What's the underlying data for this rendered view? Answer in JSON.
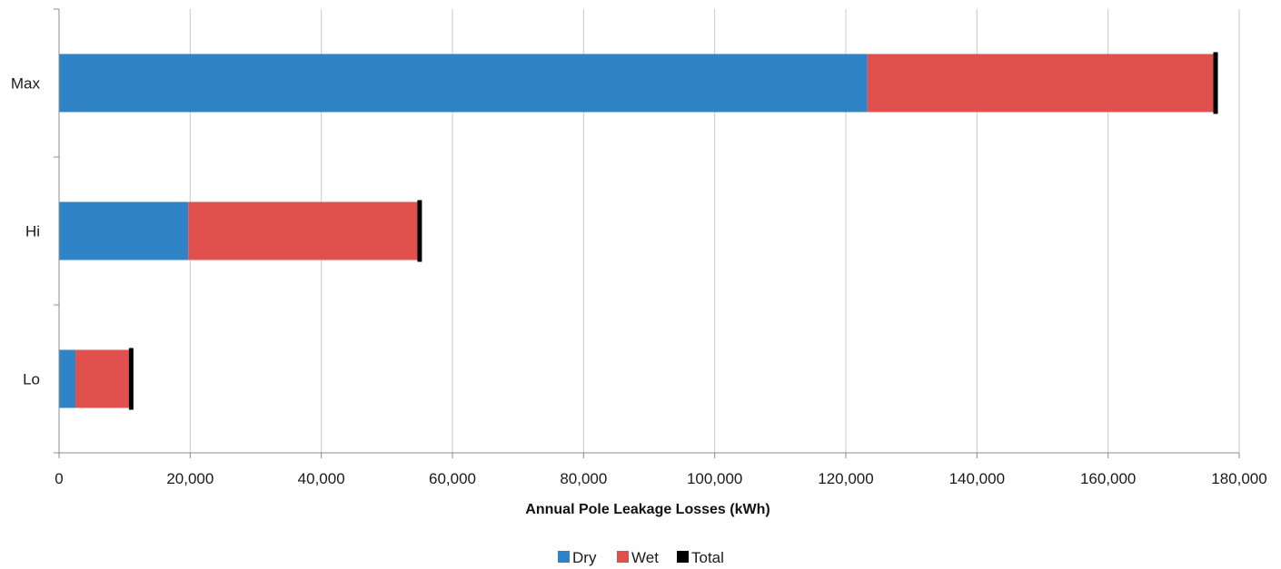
{
  "chart_data": {
    "type": "bar",
    "orientation": "horizontal",
    "stacked": true,
    "categories": [
      "Max",
      "Hi",
      "Lo"
    ],
    "series": [
      {
        "name": "Dry",
        "color": "#2E84C6",
        "values": [
          123300,
          19700,
          2500
        ]
      },
      {
        "name": "Wet",
        "color": "#E0504D",
        "values": [
          53100,
          35300,
          8500
        ]
      }
    ],
    "total_marker": {
      "name": "Total",
      "color": "#000000",
      "values": [
        176400,
        55000,
        11000
      ]
    },
    "xlabel": "Annual Pole Leakage Losses (kWh)",
    "ylabel": "",
    "xlim": [
      0,
      180000
    ],
    "x_ticks": [
      0,
      20000,
      40000,
      60000,
      80000,
      100000,
      120000,
      140000,
      160000,
      180000
    ],
    "x_tick_labels": [
      "0",
      "20,000",
      "40,000",
      "60,000",
      "80,000",
      "100,000",
      "120,000",
      "140,000",
      "160,000",
      "180,000"
    ],
    "grid": "vertical",
    "legend_position": "bottom-center"
  }
}
